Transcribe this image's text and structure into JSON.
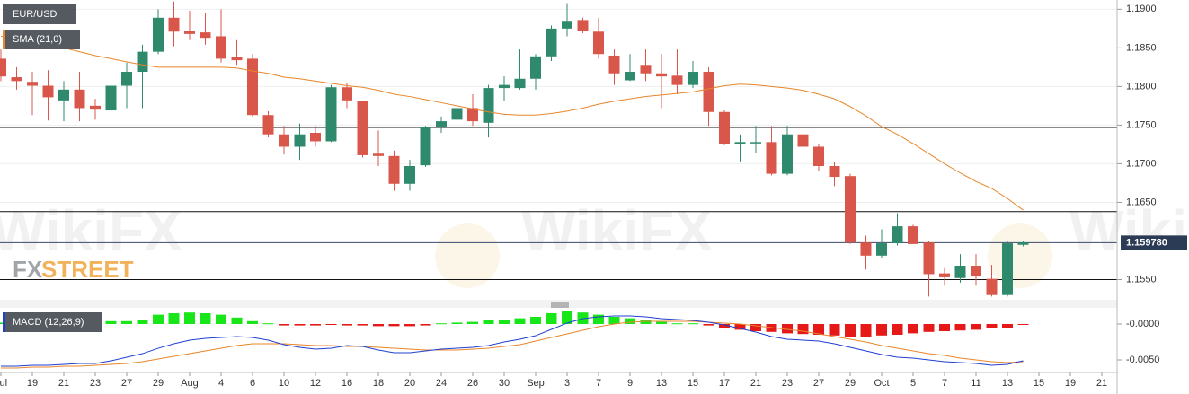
{
  "watermark": "WikiFX",
  "logo": [
    "FX",
    "STREET"
  ],
  "chart_data": [
    {
      "type": "candlestick",
      "title": "EUR/USD",
      "up_color": "#2f8a6d",
      "down_color": "#d9574a",
      "open": [
        1.1836,
        1.1812,
        1.1806,
        1.1801,
        1.1782,
        1.1796,
        1.1775,
        1.1769,
        1.1801,
        1.1819,
        1.1845,
        1.1889,
        1.1872,
        1.187,
        1.1865,
        1.1838,
        1.1836,
        1.1763,
        1.1738,
        1.1722,
        1.174,
        1.1729,
        1.1799,
        1.1781,
        1.1713,
        1.171,
        1.1674,
        1.1698,
        1.1747,
        1.1757,
        1.1772,
        1.1753,
        1.1798,
        1.1798,
        1.181,
        1.1839,
        1.1875,
        1.1886,
        1.1871,
        1.184,
        1.1808,
        1.1828,
        1.1817,
        1.1814,
        1.1802,
        1.1819,
        1.1767,
        1.1726,
        1.1727,
        1.1728,
        1.1687,
        1.1738,
        1.1722,
        1.1697,
        1.1684,
        1.1598,
        1.1581,
        1.1597,
        1.1619,
        1.1598,
        1.1558,
        1.1552,
        1.1568,
        1.1551,
        1.153,
        1.1595,
        null,
        null,
        null,
        null,
        null
      ],
      "high": [
        1.1848,
        1.1825,
        1.1819,
        1.1821,
        1.1807,
        1.1819,
        1.1784,
        1.1813,
        1.1831,
        1.1854,
        1.19,
        1.191,
        1.1898,
        1.1895,
        1.19,
        1.186,
        1.1842,
        1.1768,
        1.1749,
        1.1752,
        1.1749,
        1.1802,
        1.1804,
        1.1781,
        1.1743,
        1.1717,
        1.1705,
        1.1749,
        1.1761,
        1.1778,
        1.179,
        1.1802,
        1.1813,
        1.1848,
        1.1842,
        1.1879,
        1.1908,
        1.1889,
        1.1889,
        1.1848,
        1.1842,
        1.1848,
        1.1842,
        1.1848,
        1.1833,
        1.1825,
        1.1769,
        1.1738,
        1.1749,
        1.1749,
        1.1749,
        1.1749,
        1.1726,
        1.1703,
        1.1687,
        1.1607,
        1.1615,
        1.1636,
        1.1621,
        1.16,
        1.1565,
        1.1583,
        1.1583,
        1.1569,
        1.16,
        1.16,
        null,
        null,
        null,
        null,
        null
      ],
      "low": [
        1.1807,
        1.1796,
        1.1763,
        1.1756,
        1.1755,
        1.1755,
        1.1757,
        1.1763,
        1.1772,
        1.1772,
        1.1842,
        1.1852,
        1.186,
        1.1854,
        1.1831,
        1.1828,
        1.1761,
        1.1734,
        1.1712,
        1.1705,
        1.1722,
        1.1728,
        1.1772,
        1.1708,
        1.1697,
        1.1665,
        1.1665,
        1.1696,
        1.174,
        1.1726,
        1.1749,
        1.1734,
        1.1782,
        1.1796,
        1.1796,
        1.1833,
        1.1865,
        1.1869,
        1.1836,
        1.1802,
        1.1807,
        1.1807,
        1.1772,
        1.179,
        1.1798,
        1.1749,
        1.1724,
        1.1703,
        1.1714,
        1.1685,
        1.1685,
        1.172,
        1.1691,
        1.1671,
        1.1596,
        1.1563,
        1.1578,
        1.1594,
        1.1596,
        1.1528,
        1.1542,
        1.1546,
        1.1542,
        1.1528,
        1.1528,
        1.1593,
        null,
        null,
        null,
        null,
        null
      ],
      "close": [
        1.1813,
        1.1807,
        1.1801,
        1.1786,
        1.1796,
        1.1772,
        1.177,
        1.1801,
        1.1819,
        1.1845,
        1.1889,
        1.1871,
        1.1868,
        1.1863,
        1.1836,
        1.1834,
        1.1763,
        1.1738,
        1.1722,
        1.1738,
        1.1729,
        1.1799,
        1.1782,
        1.1711,
        1.171,
        1.1674,
        1.1697,
        1.1747,
        1.1755,
        1.1772,
        1.1755,
        1.1798,
        1.1802,
        1.181,
        1.1839,
        1.1875,
        1.1885,
        1.1872,
        1.1842,
        1.1817,
        1.1819,
        1.1817,
        1.1813,
        1.1802,
        1.1819,
        1.1767,
        1.1726,
        1.1728,
        1.1728,
        1.1687,
        1.1738,
        1.1722,
        1.1697,
        1.1683,
        1.1598,
        1.1581,
        1.1597,
        1.1619,
        1.1596,
        1.1557,
        1.1553,
        1.1568,
        1.1554,
        1.153,
        1.1597,
        1.1598,
        null,
        null,
        null,
        null,
        null
      ],
      "sma": {
        "name": "SMA (21,0)",
        "color": "#e8862a",
        "values": [
          1.1865,
          1.1862,
          1.1859,
          1.1856,
          1.185,
          1.1845,
          1.184,
          1.1836,
          1.1832,
          1.1828,
          1.1825,
          1.1825,
          1.1825,
          1.1825,
          1.1825,
          1.1824,
          1.182,
          1.1817,
          1.1812,
          1.181,
          1.1807,
          1.1804,
          1.1801,
          1.1799,
          1.1795,
          1.179,
          1.1787,
          1.1783,
          1.1779,
          1.1775,
          1.1771,
          1.1767,
          1.1764,
          1.1763,
          1.1763,
          1.1765,
          1.1768,
          1.1772,
          1.1777,
          1.1781,
          1.1784,
          1.1787,
          1.1789,
          1.1791,
          1.1793,
          1.1797,
          1.1801,
          1.1803,
          1.1802,
          1.18,
          1.1798,
          1.1795,
          1.179,
          1.1784,
          1.1774,
          1.1762,
          1.1748,
          1.1738,
          1.1726,
          1.1713,
          1.17,
          1.1688,
          1.1677,
          1.1668,
          1.1655,
          1.164,
          null,
          null,
          null,
          null,
          null
        ]
      },
      "hlines": [
        1.1747,
        1.1638,
        1.155
      ],
      "last_price": {
        "value": 1.15978,
        "label": "1.159780"
      },
      "ylim": [
        1.1525,
        1.1912
      ],
      "yticks": [
        {
          "value": 1.19,
          "label": "1.1900"
        },
        {
          "value": 1.185,
          "label": "1.1850"
        },
        {
          "value": 1.18,
          "label": "1.1800"
        },
        {
          "value": 1.175,
          "label": "1.1750"
        },
        {
          "value": 1.17,
          "label": "1.1700"
        },
        {
          "value": 1.165,
          "label": "1.1650"
        },
        {
          "value": 1.155,
          "label": "1.1550"
        }
      ],
      "grid": true
    },
    {
      "type": "macd",
      "title": "MACD (12,26,9)",
      "categories": [
        "Jul",
        null,
        "19",
        null,
        "21",
        null,
        "23",
        null,
        "27",
        null,
        "29",
        null,
        "Aug",
        null,
        "4",
        null,
        "6",
        null,
        "10",
        null,
        "12",
        null,
        "16",
        null,
        "18",
        null,
        "20",
        null,
        "24",
        null,
        "26",
        null,
        "30",
        null,
        "Sep",
        null,
        "3",
        null,
        "7",
        null,
        "9",
        null,
        "13",
        null,
        "15",
        null,
        "17",
        null,
        "21",
        null,
        "23",
        null,
        "27",
        null,
        "29",
        null,
        "Oct",
        null,
        "5",
        null,
        "7",
        null,
        "11",
        null,
        "13",
        null,
        "15",
        null,
        "19",
        null,
        "21"
      ],
      "histogram": {
        "up_color": "#19e619",
        "down_color": "#e61919",
        "values": [
          0.0002,
          0.0002,
          0.0002,
          0.0003,
          0.0003,
          0.0004,
          0.0004,
          0.0004,
          0.0004,
          0.0006,
          0.0013,
          0.0015,
          0.0016,
          0.0015,
          0.0013,
          0.0009,
          0.0004,
          0.0001,
          -0.0002,
          -0.0002,
          -0.0002,
          -0.0001,
          -0.0002,
          -0.0002,
          -0.0003,
          -0.0003,
          -0.0003,
          -0.0002,
          0.0001,
          0.0002,
          0.0003,
          0.0005,
          0.0006,
          0.0008,
          0.001,
          0.0015,
          0.0018,
          0.0016,
          0.0013,
          0.001,
          0.0008,
          0.0005,
          0.0003,
          0.0001,
          0.0001,
          -0.0002,
          -0.0005,
          -0.0008,
          -0.001,
          -0.0011,
          -0.0013,
          -0.0014,
          -0.0015,
          -0.0016,
          -0.0018,
          -0.0018,
          -0.0016,
          -0.0015,
          -0.0013,
          -0.0011,
          -0.001,
          -0.0009,
          -0.0008,
          -0.0006,
          -0.0005,
          -0.0001,
          null,
          null,
          null,
          null,
          null
        ]
      },
      "macd": {
        "color": "#1f3fd1",
        "values": [
          -0.00588,
          -0.00588,
          -0.00575,
          -0.00575,
          -0.00563,
          -0.0055,
          -0.0055,
          -0.00513,
          -0.00463,
          -0.00413,
          -0.00338,
          -0.00275,
          -0.00225,
          -0.002,
          -0.00188,
          -0.00175,
          -0.00188,
          -0.00225,
          -0.00288,
          -0.00325,
          -0.0035,
          -0.00338,
          -0.003,
          -0.00313,
          -0.00363,
          -0.004,
          -0.004,
          -0.00375,
          -0.0035,
          -0.00338,
          -0.00325,
          -0.003,
          -0.0025,
          -0.00213,
          -0.00163,
          -0.00075,
          0.00013,
          0.00075,
          0.001,
          0.00113,
          0.00113,
          0.001,
          0.00075,
          0.00063,
          0.0005,
          0.00025,
          -0.00013,
          -0.00063,
          -0.00113,
          -0.00175,
          -0.00213,
          -0.00225,
          -0.00238,
          -0.00275,
          -0.00325,
          -0.00375,
          -0.00425,
          -0.00463,
          -0.00475,
          -0.005,
          -0.00525,
          -0.00538,
          -0.0055,
          -0.00575,
          -0.00563,
          -0.00513,
          null,
          null,
          null,
          null,
          null
        ]
      },
      "signal": {
        "color": "#e8862a",
        "values": [
          -0.00613,
          -0.00613,
          -0.006,
          -0.006,
          -0.00588,
          -0.00588,
          -0.00575,
          -0.00563,
          -0.0055,
          -0.00525,
          -0.00488,
          -0.0045,
          -0.00413,
          -0.00375,
          -0.00338,
          -0.003,
          -0.00275,
          -0.00275,
          -0.00275,
          -0.00288,
          -0.003,
          -0.003,
          -0.00313,
          -0.00313,
          -0.00325,
          -0.00338,
          -0.0035,
          -0.00363,
          -0.00363,
          -0.00363,
          -0.0035,
          -0.00338,
          -0.00313,
          -0.00288,
          -0.00238,
          -0.00188,
          -0.00138,
          -0.00088,
          -0.00038,
          0,
          0.00025,
          0.00038,
          0.00038,
          0.00038,
          0.00038,
          0.00025,
          0.00013,
          0,
          -0.00025,
          -0.0005,
          -0.00075,
          -0.001,
          -0.00138,
          -0.00175,
          -0.00213,
          -0.0025,
          -0.003,
          -0.00338,
          -0.00375,
          -0.00413,
          -0.00438,
          -0.00475,
          -0.005,
          -0.00525,
          -0.00538,
          -0.00525,
          null,
          null,
          null,
          null,
          null
        ]
      },
      "ylim": [
        -0.00675,
        0.00225
      ],
      "yticks": [
        {
          "value": 0,
          "label": "-0.0000"
        },
        {
          "value": -0.005,
          "label": "-0.0050"
        }
      ]
    }
  ]
}
